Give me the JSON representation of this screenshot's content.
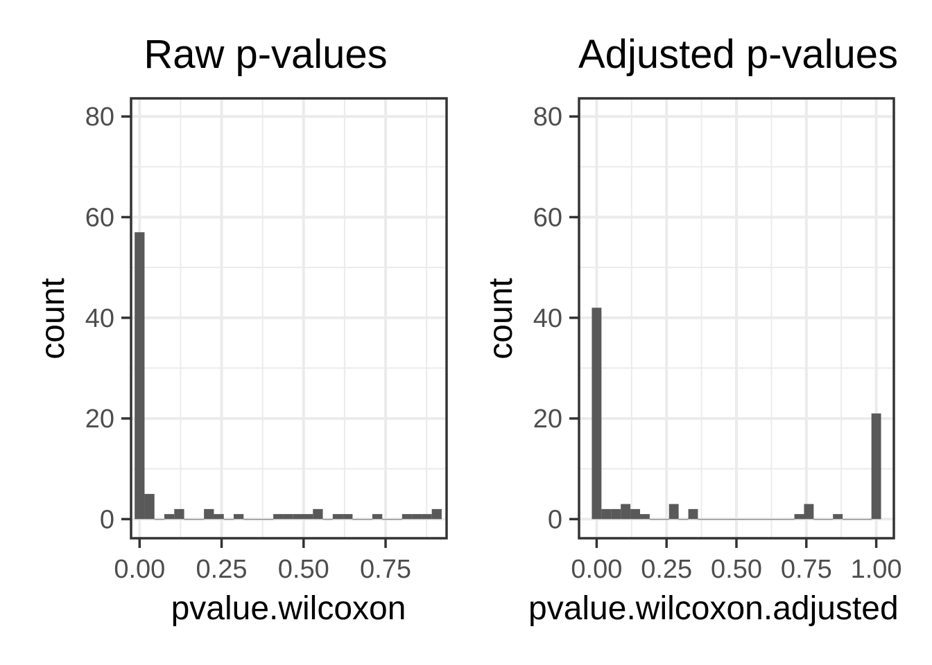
{
  "chart_data": [
    {
      "type": "bar",
      "subtype": "histogram",
      "title": "Raw p-values",
      "xlabel": "pvalue.wilcoxon",
      "ylabel": "count",
      "xlim": [
        -0.026,
        0.936
      ],
      "ylim": [
        -3.8,
        83.6
      ],
      "x_ticks": [
        0.0,
        0.25,
        0.5,
        0.75
      ],
      "x_tick_labels": [
        "0.00",
        "0.25",
        "0.50",
        "0.75"
      ],
      "y_ticks": [
        0,
        20,
        40,
        60,
        80
      ],
      "y_tick_labels": [
        "0",
        "20",
        "40",
        "60",
        "80"
      ],
      "bin_width": 0.0302,
      "x": [
        0.0,
        0.0302,
        0.0604,
        0.0906,
        0.1208,
        0.151,
        0.1812,
        0.2114,
        0.2416,
        0.2718,
        0.302,
        0.3322,
        0.3624,
        0.3926,
        0.4228,
        0.453,
        0.4832,
        0.5134,
        0.5436,
        0.5738,
        0.604,
        0.6342,
        0.6644,
        0.6946,
        0.7248,
        0.755,
        0.7852,
        0.8154,
        0.8456,
        0.8758,
        0.906
      ],
      "values": [
        57,
        5,
        0,
        1,
        2,
        0,
        0,
        2,
        1,
        0,
        1,
        0,
        0,
        0,
        1,
        1,
        1,
        1,
        2,
        0,
        1,
        1,
        0,
        0,
        1,
        0,
        0,
        1,
        1,
        1,
        2
      ],
      "grid": true,
      "bar_color": "#595959"
    },
    {
      "type": "bar",
      "subtype": "histogram",
      "title": "Adjusted p-values",
      "xlabel": "pvalue.wilcoxon.adjusted",
      "ylabel": "count",
      "xlim": [
        -0.063,
        1.063
      ],
      "ylim": [
        -3.8,
        83.6
      ],
      "x_ticks": [
        0.0,
        0.25,
        0.5,
        0.75,
        1.0
      ],
      "x_tick_labels": [
        "0.00",
        "0.25",
        "0.50",
        "0.75",
        "1.00"
      ],
      "y_ticks": [
        0,
        20,
        40,
        60,
        80
      ],
      "y_tick_labels": [
        "0",
        "20",
        "40",
        "60",
        "80"
      ],
      "bin_width": 0.0345,
      "x": [
        0.0,
        0.0345,
        0.069,
        0.1035,
        0.138,
        0.1725,
        0.207,
        0.2415,
        0.276,
        0.3105,
        0.345,
        0.3795,
        0.414,
        0.4485,
        0.483,
        0.5175,
        0.552,
        0.5865,
        0.621,
        0.6555,
        0.69,
        0.7245,
        0.759,
        0.7935,
        0.828,
        0.8625,
        0.897,
        0.9315,
        0.966,
        1.0
      ],
      "values": [
        42,
        2,
        2,
        3,
        2,
        1,
        0,
        0,
        3,
        0,
        2,
        0,
        0,
        0,
        0,
        0,
        0,
        0,
        0,
        0,
        0,
        1,
        3,
        0,
        0,
        1,
        0,
        0,
        0,
        21
      ],
      "grid": true,
      "bar_color": "#595959"
    }
  ]
}
